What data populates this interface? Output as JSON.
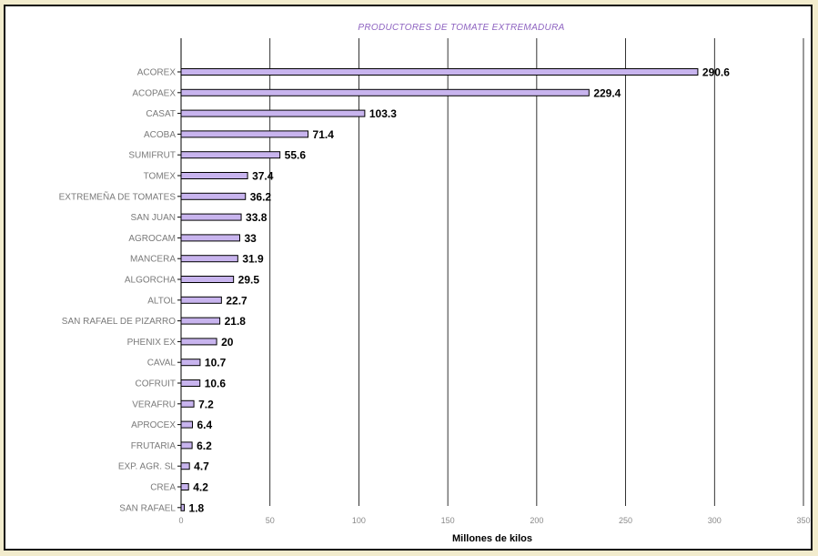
{
  "chart_data": {
    "type": "bar",
    "orientation": "horizontal",
    "title": "PRODUCTORES DE TOMATE EXTREMADURA",
    "xlabel": "Millones de kilos",
    "ylabel": "",
    "xlim": [
      0,
      350
    ],
    "xticks": [
      0,
      50,
      100,
      150,
      200,
      250,
      300,
      350
    ],
    "grid": "vertical",
    "bar_color": "#c8b4ee",
    "categories": [
      "ACOREX",
      "ACOPAEX",
      "CASAT",
      "ACOBA",
      "SUMIFRUT",
      "TOMEX",
      "EXTREMEÑA DE TOMATES",
      "SAN JUAN",
      "AGROCAM",
      "MANCERA",
      "ALGORCHA",
      "ALTOL",
      "SAN RAFAEL DE PIZARRO",
      "PHENIX EX",
      "CAVAL",
      "COFRUIT",
      "VERAFRU",
      "APROCEX",
      "FRUTARIA",
      "EXP. AGR. SL",
      "CREA",
      "SAN RAFAEL"
    ],
    "values": [
      290.6,
      229.4,
      103.3,
      71.4,
      55.6,
      37.4,
      36.2,
      33.8,
      33,
      31.9,
      29.5,
      22.7,
      21.8,
      20,
      10.7,
      10.6,
      7.2,
      6.4,
      6.2,
      4.7,
      4.2,
      1.8
    ],
    "value_labels": [
      "290.6",
      "229.4",
      "103.3",
      "71.4",
      "55.6",
      "37.4",
      "36.2",
      "33.8",
      "33",
      "31.9",
      "29.5",
      "22.7",
      "21.8",
      "20",
      "10.7",
      "10.6",
      "7.2",
      "6.4",
      "6.2",
      "4.7",
      "4.2",
      "1.8"
    ]
  }
}
